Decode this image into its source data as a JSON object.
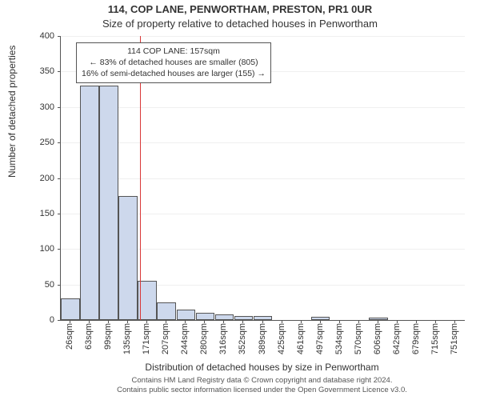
{
  "title_line1": "114, COP LANE, PENWORTHAM, PRESTON, PR1 0UR",
  "title_line2": "Size of property relative to detached houses in Penwortham",
  "y_axis": {
    "label": "Number of detached properties",
    "max": 400,
    "ticks": [
      0,
      50,
      100,
      150,
      200,
      250,
      300,
      350,
      400
    ]
  },
  "x_axis": {
    "label": "Distribution of detached houses by size in Penwortham"
  },
  "chart": {
    "type": "histogram",
    "bar_color": "#cdd8ec",
    "bar_border_color": "#555555",
    "grid_color": "#f0f0f0",
    "background_color": "#ffffff",
    "marker_color": "#d93838",
    "categories": [
      "26sqm",
      "63sqm",
      "99sqm",
      "135sqm",
      "171sqm",
      "207sqm",
      "244sqm",
      "280sqm",
      "316sqm",
      "352sqm",
      "389sqm",
      "425sqm",
      "461sqm",
      "497sqm",
      "534sqm",
      "570sqm",
      "606sqm",
      "642sqm",
      "679sqm",
      "715sqm",
      "751sqm"
    ],
    "values": [
      30,
      330,
      330,
      175,
      55,
      25,
      15,
      10,
      8,
      6,
      6,
      0,
      0,
      4,
      0,
      0,
      3,
      0,
      0,
      0,
      0
    ]
  },
  "marker": {
    "position_index": 3.6,
    "callout_lines": [
      "114 COP LANE: 157sqm",
      "← 83% of detached houses are smaller (805)",
      "16% of semi-detached houses are larger (155) →"
    ]
  },
  "attribution": {
    "line1": "Contains HM Land Registry data © Crown copyright and database right 2024.",
    "line2": "Contains public sector information licensed under the Open Government Licence v3.0."
  }
}
